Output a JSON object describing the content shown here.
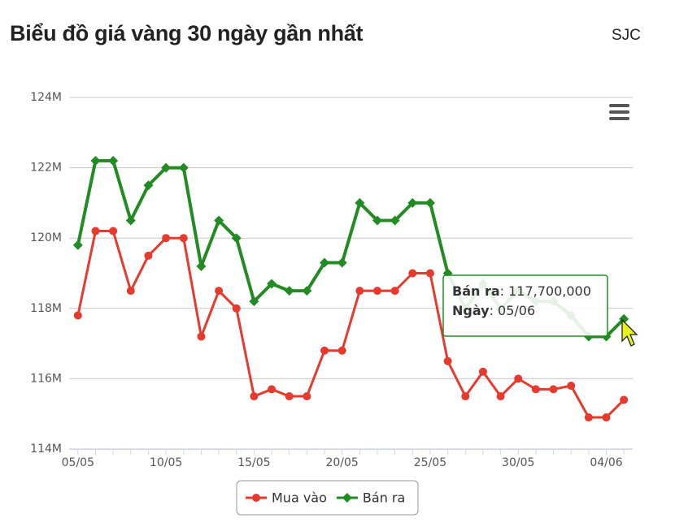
{
  "header": {
    "title": "Biểu đồ giá vàng 30 ngày gần nhất",
    "brand": "SJC"
  },
  "chart_data": {
    "type": "line",
    "categories": [
      "05/05",
      null,
      null,
      null,
      null,
      "10/05",
      null,
      null,
      null,
      null,
      "15/05",
      null,
      null,
      null,
      null,
      "20/05",
      null,
      null,
      null,
      null,
      "25/05",
      null,
      null,
      null,
      null,
      "30/05",
      null,
      null,
      null,
      null,
      "04/06",
      null
    ],
    "series": [
      {
        "name": "Mua vào",
        "color": "#e53a2d",
        "marker": "circle",
        "values": [
          117.8,
          120.2,
          120.2,
          118.5,
          119.5,
          120.0,
          120.0,
          117.2,
          118.5,
          118.0,
          115.5,
          115.7,
          115.5,
          115.5,
          116.8,
          116.8,
          118.5,
          118.5,
          118.5,
          119.0,
          119.0,
          116.5,
          115.5,
          116.2,
          115.5,
          116.0,
          115.7,
          115.7,
          115.8,
          114.9,
          114.9,
          115.4
        ]
      },
      {
        "name": "Bán ra",
        "color": "#238b23",
        "marker": "diamond",
        "values": [
          119.8,
          122.2,
          122.2,
          120.5,
          121.5,
          122.0,
          122.0,
          119.2,
          120.5,
          120.0,
          118.2,
          118.7,
          118.5,
          118.5,
          119.3,
          119.3,
          121.0,
          120.5,
          120.5,
          121.0,
          121.0,
          119.0,
          118.0,
          118.7,
          118.0,
          118.5,
          118.2,
          118.2,
          117.8,
          117.2,
          117.2,
          117.7
        ]
      }
    ],
    "ylim": [
      114,
      124
    ],
    "yticks": [
      {
        "value": 114,
        "label": "114M"
      },
      {
        "value": 116,
        "label": "116M"
      },
      {
        "value": 118,
        "label": "118M"
      },
      {
        "value": 120,
        "label": "120M"
      },
      {
        "value": 122,
        "label": "122M"
      },
      {
        "value": 124,
        "label": "124M"
      }
    ],
    "grid": true,
    "tooltip": {
      "lines": [
        {
          "label": "Bán ra",
          "text": ": 117,700,000"
        },
        {
          "label": "Ngày",
          "text": ": 05/06"
        }
      ]
    }
  }
}
